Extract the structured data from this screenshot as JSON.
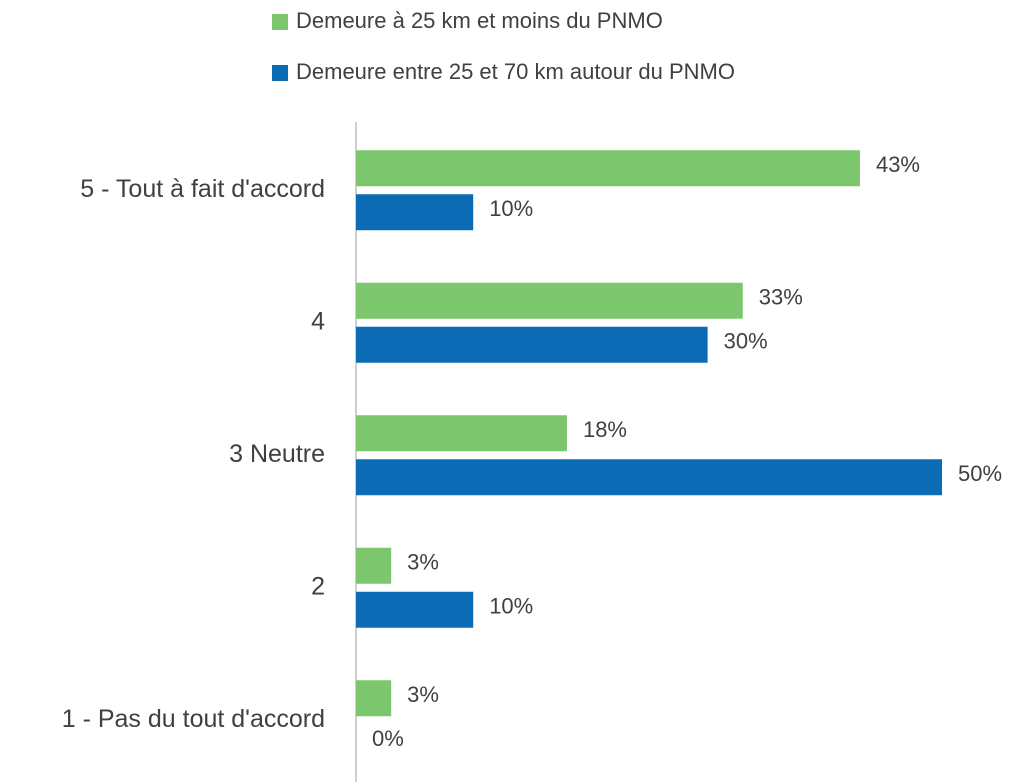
{
  "chart_data": {
    "type": "bar",
    "orientation": "horizontal",
    "categories": [
      "5 - Tout à fait d'accord",
      "4",
      "3 Neutre",
      "2",
      "1 - Pas du tout d'accord"
    ],
    "series": [
      {
        "name": "Demeure à 25 km et moins du PNMO",
        "color": "#7cc66d",
        "values": [
          43,
          33,
          18,
          3,
          3
        ],
        "value_labels": [
          "43%",
          "33%",
          "18%",
          "3%",
          "3%"
        ]
      },
      {
        "name": "Demeure entre 25 et 70 km autour du PNMO",
        "color": "#0b6bb5",
        "values": [
          10,
          30,
          50,
          10,
          0
        ],
        "value_labels": [
          "10%",
          "30%",
          "50%",
          "10%",
          "0%"
        ]
      }
    ]
  }
}
